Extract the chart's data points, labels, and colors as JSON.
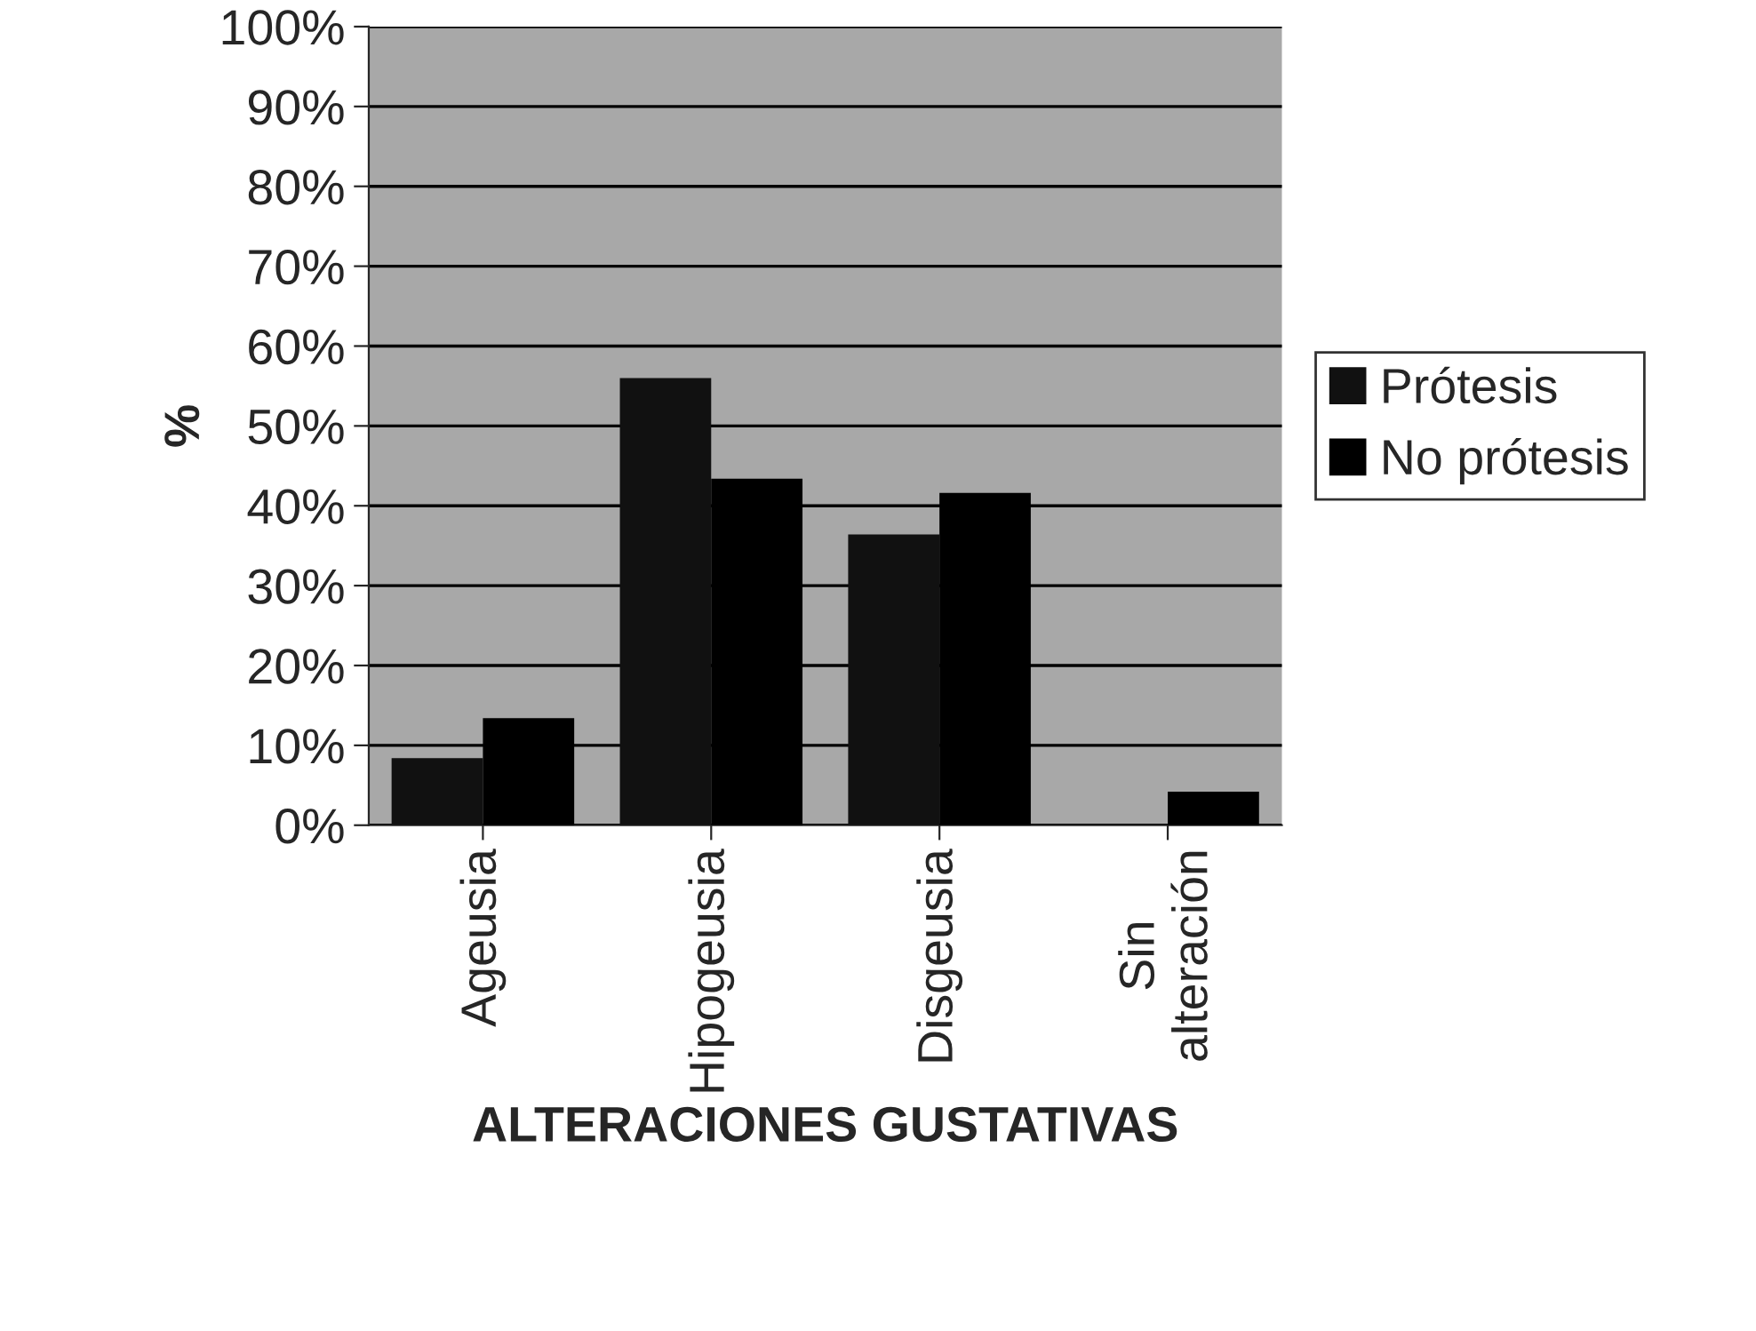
{
  "chart_data": {
    "type": "bar",
    "xlabel": "ALTERACIONES GUSTATIVAS",
    "ylabel": "%",
    "categories": [
      "Ageusia",
      "Hipogeusia",
      "Disgeusia",
      "Sin\nalteración"
    ],
    "series": [
      {
        "name": "Prótesis",
        "color": "#111111",
        "values": [
          8.4,
          56,
          36.4,
          0
        ]
      },
      {
        "name": "No prótesis",
        "color": "#000000",
        "values": [
          13.4,
          43.4,
          41.6,
          4.2
        ]
      }
    ],
    "ylim": [
      0,
      100
    ],
    "yticks": [
      {
        "value": 0,
        "label": "0%"
      },
      {
        "value": 10,
        "label": "10%"
      },
      {
        "value": 20,
        "label": "20%"
      },
      {
        "value": 30,
        "label": "30%"
      },
      {
        "value": 40,
        "label": "40%"
      },
      {
        "value": 50,
        "label": "50%"
      },
      {
        "value": 60,
        "label": "60%"
      },
      {
        "value": 70,
        "label": "70%"
      },
      {
        "value": 80,
        "label": "80%"
      },
      {
        "value": 90,
        "label": "90%"
      },
      {
        "value": 100,
        "label": "100%"
      }
    ],
    "grid": "y",
    "legend": "right"
  }
}
